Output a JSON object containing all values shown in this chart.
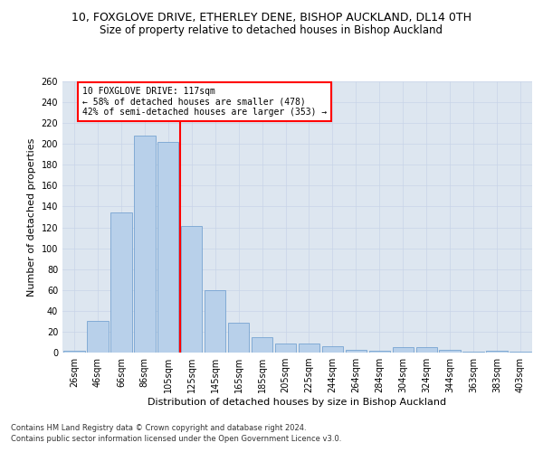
{
  "title_line1": "10, FOXGLOVE DRIVE, ETHERLEY DENE, BISHOP AUCKLAND, DL14 0TH",
  "title_line2": "Size of property relative to detached houses in Bishop Auckland",
  "xlabel": "Distribution of detached houses by size in Bishop Auckland",
  "ylabel": "Number of detached properties",
  "bar_values": [
    2,
    30,
    134,
    208,
    202,
    121,
    60,
    29,
    15,
    9,
    9,
    6,
    3,
    2,
    5,
    5,
    3,
    1,
    2,
    1
  ],
  "bar_labels": [
    "26sqm",
    "46sqm",
    "66sqm",
    "86sqm",
    "105sqm",
    "125sqm",
    "145sqm",
    "165sqm",
    "185sqm",
    "205sqm",
    "225sqm",
    "244sqm",
    "264sqm",
    "284sqm",
    "304sqm",
    "324sqm",
    "344sqm",
    "363sqm",
    "383sqm",
    "403sqm"
  ],
  "bar_color": "#b8d0ea",
  "bar_edge_color": "#6699cc",
  "vline_x": 4.5,
  "vline_color": "red",
  "annotation_text": "10 FOXGLOVE DRIVE: 117sqm\n← 58% of detached houses are smaller (478)\n42% of semi-detached houses are larger (353) →",
  "annotation_box_color": "white",
  "annotation_box_edge_color": "red",
  "ylim": [
    0,
    260
  ],
  "yticks": [
    0,
    20,
    40,
    60,
    80,
    100,
    120,
    140,
    160,
    180,
    200,
    220,
    240,
    260
  ],
  "grid_color": "#c8d4e8",
  "background_color": "#dde6f0",
  "footer_line1": "Contains HM Land Registry data © Crown copyright and database right 2024.",
  "footer_line2": "Contains public sector information licensed under the Open Government Licence v3.0.",
  "title_fontsize": 9,
  "subtitle_fontsize": 8.5,
  "axis_label_fontsize": 8,
  "tick_fontsize": 7,
  "footer_fontsize": 6
}
